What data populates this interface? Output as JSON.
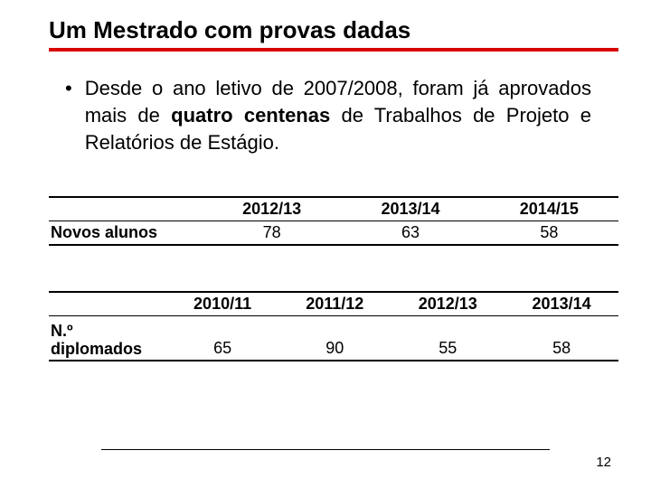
{
  "title": "Um Mestrado com provas dadas",
  "bullet": {
    "pre": "Desde o ano letivo de 2007/2008, foram já aprovados  mais  de ",
    "bold": "quatro centenas",
    "post": "  de Trabalhos de Projeto e Relatórios de Estágio."
  },
  "table1": {
    "rowLabel": "Novos alunos",
    "headers": [
      "2012/13",
      "2013/14",
      "2014/15"
    ],
    "values": [
      "78",
      "63",
      "58"
    ]
  },
  "table2": {
    "rowLabel": "N.º diplomados",
    "headers": [
      "2010/11",
      "2011/12",
      "2012/13",
      "2013/14"
    ],
    "values": [
      "65",
      "90",
      "55",
      "58"
    ]
  },
  "pageNumber": "12"
}
